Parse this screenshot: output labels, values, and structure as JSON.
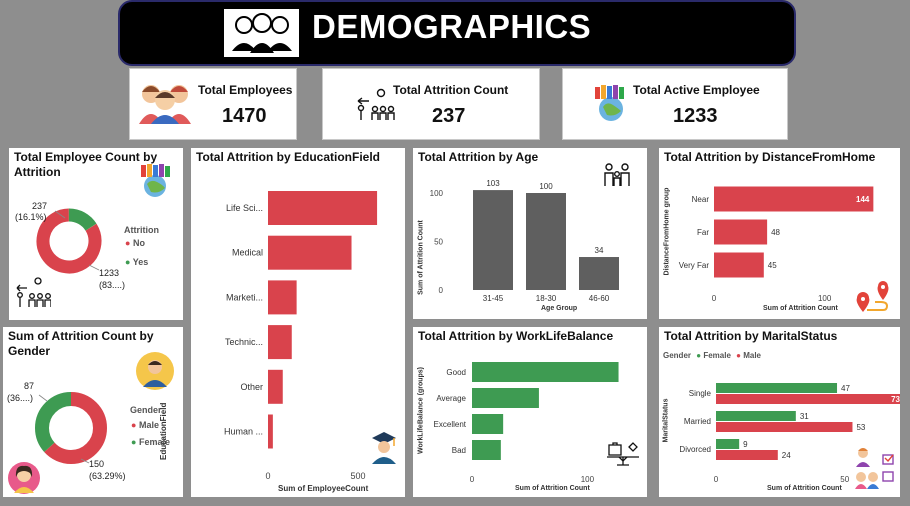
{
  "header": {
    "title": "DEMOGRAPHICS"
  },
  "kpis": {
    "total_employees": {
      "label": "Total Employees",
      "value": "1470"
    },
    "attrition_count": {
      "label": "Total Attrition Count",
      "value": "237"
    },
    "active_employee": {
      "label": "Total Active Employee",
      "value": "1233"
    }
  },
  "colors": {
    "red": "#d9434c",
    "green": "#3e9b52",
    "gray": "#5f5f5f"
  },
  "panels": {
    "employee_by_attrition": {
      "title": "Total Employee Count by Attrition",
      "legend_title": "Attrition",
      "legend": [
        "No",
        "Yes"
      ],
      "label_yes_value": "237",
      "label_yes_pct": "(16.1%)",
      "label_no_value": "1233",
      "label_no_pct": "(83....)"
    },
    "attrition_by_gender": {
      "title": "Sum of Attrition Count by Gender",
      "legend_title": "Gender",
      "legend": [
        "Male",
        "Female"
      ],
      "label_female_value": "87",
      "label_female_pct": "(36....)",
      "label_male_value": "150",
      "label_male_pct": "(63.29%)"
    },
    "education_field": {
      "title": "Total Attrition by EducationField",
      "ylabel": "EducationField",
      "xlabel": "Sum of EmployeeCount",
      "ticks": [
        "0",
        "500"
      ]
    },
    "age": {
      "title": "Total Attrition by Age",
      "ylabel": "Sum of Attrition Count",
      "xlabel": "Age Group",
      "ticks": [
        "0",
        "50",
        "100"
      ]
    },
    "distance": {
      "title": "Total Attrition by DistanceFromHome",
      "ylabel": "DistanceFromHome group",
      "xlabel": "Sum of Attrition Count",
      "ticks": [
        "0",
        "100"
      ]
    },
    "worklife": {
      "title": "Total Attrition by WorkLifeBalance",
      "ylabel": "WorkLifeBalance (groups)",
      "xlabel": "Sum of Attrition Count",
      "ticks": [
        "0",
        "100"
      ]
    },
    "marital": {
      "title": "Total Attrition by MaritalStatus",
      "legend_title": "Gender",
      "legend": [
        "Female",
        "Male"
      ],
      "ylabel": "MaritalStatus",
      "xlabel": "Sum of Attrition Count",
      "ticks": [
        "0",
        "50"
      ]
    }
  },
  "chart_data": [
    {
      "type": "pie",
      "title": "Total Employee Count by Attrition",
      "donut": true,
      "categories": [
        "No",
        "Yes"
      ],
      "values": [
        1233,
        237
      ]
    },
    {
      "type": "pie",
      "title": "Sum of Attrition Count by Gender",
      "donut": true,
      "categories": [
        "Male",
        "Female"
      ],
      "values": [
        150,
        87
      ]
    },
    {
      "type": "bar",
      "orientation": "horizontal",
      "title": "Total Attrition by EducationField",
      "categories": [
        "Life Sci...",
        "Medical",
        "Marketi...",
        "Technic...",
        "Other",
        "Human ..."
      ],
      "values": [
        606,
        464,
        159,
        132,
        82,
        27
      ],
      "xlabel": "Sum of EmployeeCount",
      "ylabel": "EducationField",
      "xlim": [
        0,
        650
      ]
    },
    {
      "type": "bar",
      "title": "Total Attrition by Age",
      "categories": [
        "31-45",
        "18-30",
        "46-60"
      ],
      "values": [
        103,
        100,
        34
      ],
      "xlabel": "Age Group",
      "ylabel": "Sum of Attrition Count",
      "ylim": [
        0,
        110
      ]
    },
    {
      "type": "bar",
      "orientation": "horizontal",
      "title": "Total Attrition by DistanceFromHome",
      "categories": [
        "Near",
        "Far",
        "Very Far"
      ],
      "values": [
        144,
        48,
        45
      ],
      "xlabel": "Sum of Attrition Count",
      "ylabel": "DistanceFromHome group",
      "xlim": [
        0,
        150
      ]
    },
    {
      "type": "bar",
      "orientation": "horizontal",
      "title": "Total Attrition by WorkLifeBalance",
      "categories": [
        "Good",
        "Average",
        "Excellent",
        "Bad"
      ],
      "values": [
        127,
        58,
        27,
        25
      ],
      "xlabel": "Sum of Attrition Count",
      "ylabel": "WorkLifeBalance (groups)",
      "xlim": [
        0,
        130
      ]
    },
    {
      "type": "bar",
      "orientation": "horizontal",
      "title": "Total Attrition by MaritalStatus",
      "categories": [
        "Single",
        "Married",
        "Divorced"
      ],
      "series": [
        {
          "name": "Female",
          "values": [
            47,
            31,
            9
          ]
        },
        {
          "name": "Male",
          "values": [
            73,
            53,
            24
          ]
        }
      ],
      "xlabel": "Sum of Attrition Count",
      "ylabel": "MaritalStatus",
      "xlim": [
        0,
        80
      ]
    }
  ]
}
